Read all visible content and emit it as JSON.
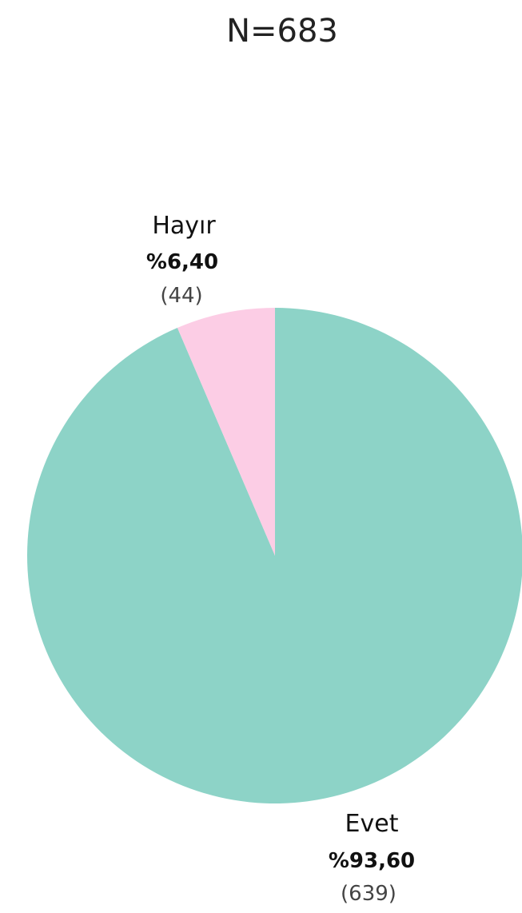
{
  "chart_data": {
    "type": "pie",
    "title": "N=683",
    "start": "12 o'clock",
    "direction": "clockwise",
    "slices": [
      {
        "label": "Evet",
        "percent_label": "%93,60",
        "count_label": "(639)",
        "value": 639,
        "percent": 93.6,
        "color": "#8dd3c7"
      },
      {
        "label": "Hayır",
        "percent_label": "%6,40",
        "count_label": "(44)",
        "value": 44,
        "percent": 6.4,
        "color": "#fccde5"
      }
    ]
  }
}
